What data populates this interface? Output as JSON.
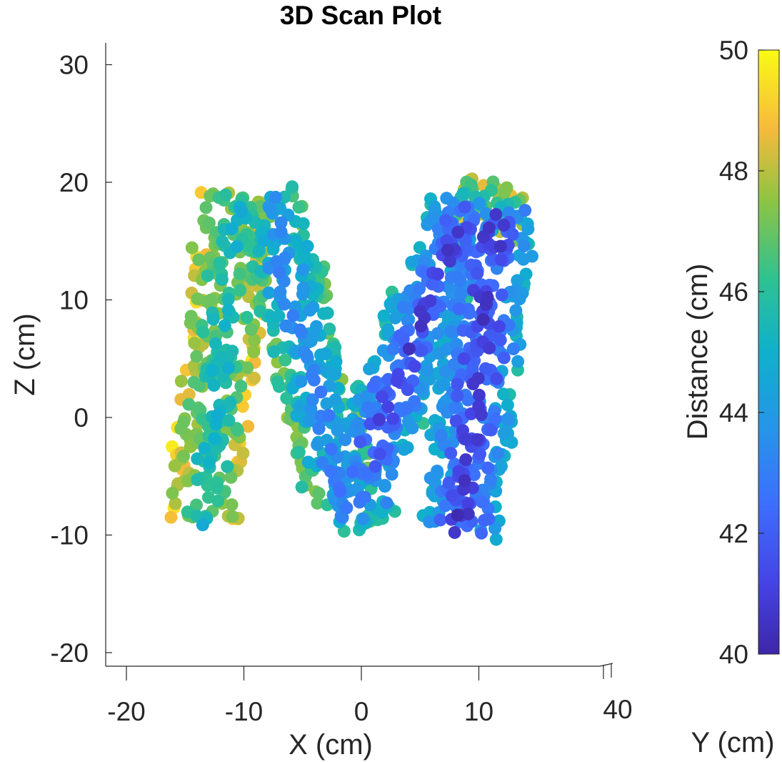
{
  "chart_data": {
    "type": "scatter",
    "title": "3D Scan Plot",
    "xlabel": "X (cm)",
    "ylabel": "Y (cm)",
    "zlabel": "Z (cm)",
    "view": "front (X-Z projection)",
    "xlim": [
      -22,
      40
    ],
    "zlim": [
      -21,
      32
    ],
    "xticks": [
      -20,
      -10,
      0,
      10
    ],
    "yticks": [
      40
    ],
    "zticks": [
      30,
      20,
      10,
      0,
      -10,
      -20
    ],
    "colorbar": {
      "label": "Distance (cm)",
      "range": [
        40,
        50
      ],
      "ticks": [
        50,
        48,
        46,
        44,
        42,
        40
      ],
      "colormap": "parula"
    },
    "grid": false,
    "shape_note": "Points sampled along strokes of a letter 'M'",
    "strokes": [
      {
        "name": "left-leg",
        "x0": -13.5,
        "z0": -9,
        "x1": -10.5,
        "z1": 19,
        "width": 6.0,
        "dist_edge": 48.5,
        "dist_center": 45.5
      },
      {
        "name": "left-diagonal",
        "x0": -8,
        "z0": 19,
        "x1": -1.5,
        "z1": -7,
        "width": 6.0,
        "dist_edge": 47.0,
        "dist_center": 43.5
      },
      {
        "name": "bottom-center",
        "x0": -2,
        "z0": -8,
        "x1": 2,
        "z1": -6,
        "width": 5.0,
        "dist_edge": 46.0,
        "dist_center": 43.0
      },
      {
        "name": "right-diagonal",
        "x0": 0,
        "z0": -5,
        "x1": 9,
        "z1": 18,
        "width": 6.0,
        "dist_edge": 45.5,
        "dist_center": 41.5
      },
      {
        "name": "right-leg",
        "x0": 8.5,
        "z0": -10,
        "x1": 11.5,
        "z1": 18,
        "width": 6.5,
        "dist_edge": 45.0,
        "dist_center": 41.0
      },
      {
        "name": "right-top-edge",
        "x0": 8,
        "z0": 19,
        "x1": 14,
        "z1": 17,
        "width": 4.0,
        "dist_edge": 48.0,
        "dist_center": 46.0
      }
    ],
    "point_count": 1400
  }
}
